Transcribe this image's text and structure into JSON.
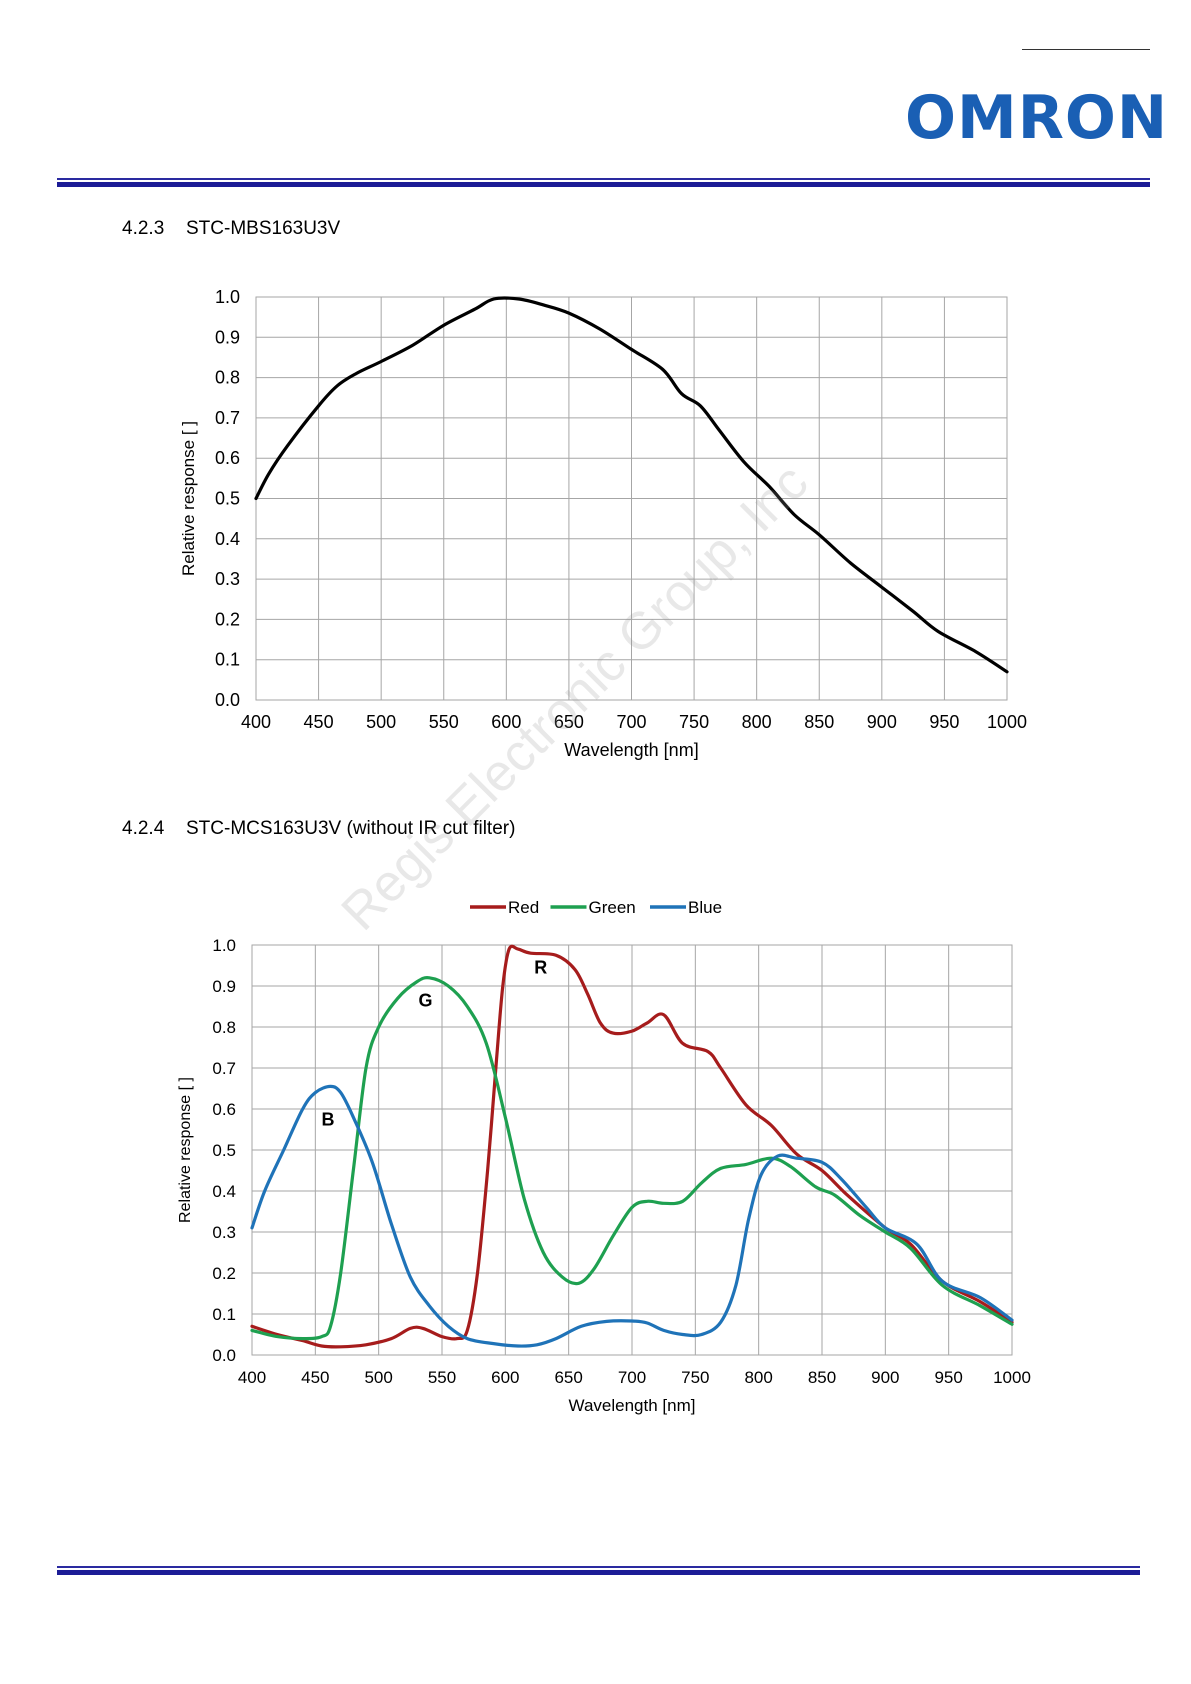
{
  "header": {
    "logo_text": "OMRON",
    "brand_color": "#1a5fb4",
    "band_color": "#1c1c96"
  },
  "watermark": "Regis Electronic Group, Inc",
  "sections": [
    {
      "number": "4.2.3",
      "title": "STC-MBS163U3V"
    },
    {
      "number": "4.2.4",
      "title": "STC-MCS163U3V (without IR cut filter)"
    }
  ],
  "chart_data": [
    {
      "type": "line",
      "xlabel": "Wavelength [nm]",
      "ylabel": "Relative response [ ]",
      "xlim": [
        400,
        1000
      ],
      "ylim": [
        0,
        1
      ],
      "x_ticks": [
        "400",
        "450",
        "500",
        "550",
        "600",
        "650",
        "700",
        "750",
        "800",
        "850",
        "900",
        "950",
        "1000"
      ],
      "y_ticks": [
        "0.0",
        "0.1",
        "0.2",
        "0.3",
        "0.4",
        "0.5",
        "0.6",
        "0.7",
        "0.8",
        "0.9",
        "1.0"
      ],
      "grid": true,
      "series": [
        {
          "color": "#000000",
          "points": [
            [
              400,
              0.5
            ],
            [
              410,
              0.56
            ],
            [
              425,
              0.63
            ],
            [
              450,
              0.73
            ],
            [
              465,
              0.78
            ],
            [
              480,
              0.81
            ],
            [
              500,
              0.84
            ],
            [
              525,
              0.88
            ],
            [
              550,
              0.93
            ],
            [
              575,
              0.97
            ],
            [
              590,
              0.995
            ],
            [
              610,
              0.995
            ],
            [
              630,
              0.98
            ],
            [
              650,
              0.96
            ],
            [
              675,
              0.92
            ],
            [
              700,
              0.87
            ],
            [
              725,
              0.82
            ],
            [
              740,
              0.76
            ],
            [
              755,
              0.73
            ],
            [
              770,
              0.67
            ],
            [
              790,
              0.59
            ],
            [
              810,
              0.53
            ],
            [
              830,
              0.46
            ],
            [
              850,
              0.41
            ],
            [
              875,
              0.34
            ],
            [
              900,
              0.28
            ],
            [
              925,
              0.22
            ],
            [
              945,
              0.17
            ],
            [
              975,
              0.12
            ],
            [
              1000,
              0.07
            ]
          ]
        }
      ]
    },
    {
      "type": "line",
      "xlabel": "Wavelength  [nm]",
      "ylabel": "Relative response [ ]",
      "xlim": [
        400,
        1000
      ],
      "ylim": [
        0,
        1
      ],
      "x_ticks": [
        "400",
        "450",
        "500",
        "550",
        "600",
        "650",
        "700",
        "750",
        "800",
        "850",
        "900",
        "950",
        "1000"
      ],
      "y_ticks": [
        "0.0",
        "0.1",
        "0.2",
        "0.3",
        "0.4",
        "0.5",
        "0.6",
        "0.7",
        "0.8",
        "0.9",
        "1.0"
      ],
      "grid": true,
      "legend_position": "top-center",
      "series": [
        {
          "name": "Red",
          "label": "R",
          "label_at": [
            628,
            0.93
          ],
          "color": "#a61c1c",
          "points": [
            [
              400,
              0.07
            ],
            [
              420,
              0.05
            ],
            [
              440,
              0.035
            ],
            [
              455,
              0.022
            ],
            [
              470,
              0.02
            ],
            [
              490,
              0.025
            ],
            [
              510,
              0.04
            ],
            [
              525,
              0.065
            ],
            [
              535,
              0.065
            ],
            [
              550,
              0.045
            ],
            [
              562,
              0.04
            ],
            [
              570,
              0.06
            ],
            [
              578,
              0.2
            ],
            [
              586,
              0.45
            ],
            [
              593,
              0.72
            ],
            [
              598,
              0.9
            ],
            [
              603,
              0.99
            ],
            [
              610,
              0.99
            ],
            [
              620,
              0.98
            ],
            [
              640,
              0.975
            ],
            [
              655,
              0.94
            ],
            [
              665,
              0.88
            ],
            [
              675,
              0.81
            ],
            [
              685,
              0.785
            ],
            [
              700,
              0.79
            ],
            [
              712,
              0.81
            ],
            [
              725,
              0.83
            ],
            [
              740,
              0.76
            ],
            [
              760,
              0.74
            ],
            [
              770,
              0.7
            ],
            [
              790,
              0.61
            ],
            [
              810,
              0.56
            ],
            [
              830,
              0.49
            ],
            [
              850,
              0.45
            ],
            [
              870,
              0.39
            ],
            [
              900,
              0.31
            ],
            [
              920,
              0.27
            ],
            [
              945,
              0.18
            ],
            [
              975,
              0.13
            ],
            [
              1000,
              0.08
            ]
          ]
        },
        {
          "name": "Green",
          "label": "G",
          "label_at": [
            537,
            0.85
          ],
          "color": "#1ea050",
          "points": [
            [
              400,
              0.06
            ],
            [
              420,
              0.045
            ],
            [
              440,
              0.04
            ],
            [
              455,
              0.045
            ],
            [
              462,
              0.07
            ],
            [
              470,
              0.2
            ],
            [
              480,
              0.45
            ],
            [
              490,
              0.7
            ],
            [
              500,
              0.8
            ],
            [
              515,
              0.87
            ],
            [
              530,
              0.91
            ],
            [
              540,
              0.92
            ],
            [
              555,
              0.9
            ],
            [
              570,
              0.85
            ],
            [
              585,
              0.76
            ],
            [
              600,
              0.58
            ],
            [
              615,
              0.38
            ],
            [
              630,
              0.25
            ],
            [
              645,
              0.19
            ],
            [
              658,
              0.175
            ],
            [
              670,
              0.21
            ],
            [
              685,
              0.29
            ],
            [
              700,
              0.36
            ],
            [
              712,
              0.375
            ],
            [
              725,
              0.37
            ],
            [
              740,
              0.375
            ],
            [
              755,
              0.42
            ],
            [
              770,
              0.455
            ],
            [
              790,
              0.465
            ],
            [
              810,
              0.48
            ],
            [
              825,
              0.46
            ],
            [
              845,
              0.41
            ],
            [
              860,
              0.39
            ],
            [
              880,
              0.34
            ],
            [
              900,
              0.3
            ],
            [
              920,
              0.26
            ],
            [
              945,
              0.17
            ],
            [
              975,
              0.12
            ],
            [
              1000,
              0.075
            ]
          ]
        },
        {
          "name": "Blue",
          "label": "B",
          "label_at": [
            460,
            0.56
          ],
          "color": "#1f73b8",
          "points": [
            [
              400,
              0.31
            ],
            [
              410,
              0.4
            ],
            [
              425,
              0.5
            ],
            [
              440,
              0.6
            ],
            [
              450,
              0.64
            ],
            [
              462,
              0.655
            ],
            [
              470,
              0.64
            ],
            [
              480,
              0.58
            ],
            [
              495,
              0.47
            ],
            [
              510,
              0.32
            ],
            [
              525,
              0.19
            ],
            [
              540,
              0.12
            ],
            [
              555,
              0.07
            ],
            [
              570,
              0.04
            ],
            [
              590,
              0.028
            ],
            [
              610,
              0.022
            ],
            [
              625,
              0.025
            ],
            [
              640,
              0.04
            ],
            [
              660,
              0.07
            ],
            [
              680,
              0.082
            ],
            [
              700,
              0.083
            ],
            [
              712,
              0.078
            ],
            [
              725,
              0.06
            ],
            [
              740,
              0.05
            ],
            [
              755,
              0.05
            ],
            [
              770,
              0.08
            ],
            [
              782,
              0.17
            ],
            [
              792,
              0.33
            ],
            [
              802,
              0.44
            ],
            [
              815,
              0.485
            ],
            [
              830,
              0.48
            ],
            [
              850,
              0.47
            ],
            [
              865,
              0.43
            ],
            [
              885,
              0.36
            ],
            [
              900,
              0.31
            ],
            [
              925,
              0.27
            ],
            [
              945,
              0.18
            ],
            [
              975,
              0.14
            ],
            [
              1000,
              0.085
            ]
          ]
        }
      ]
    }
  ]
}
